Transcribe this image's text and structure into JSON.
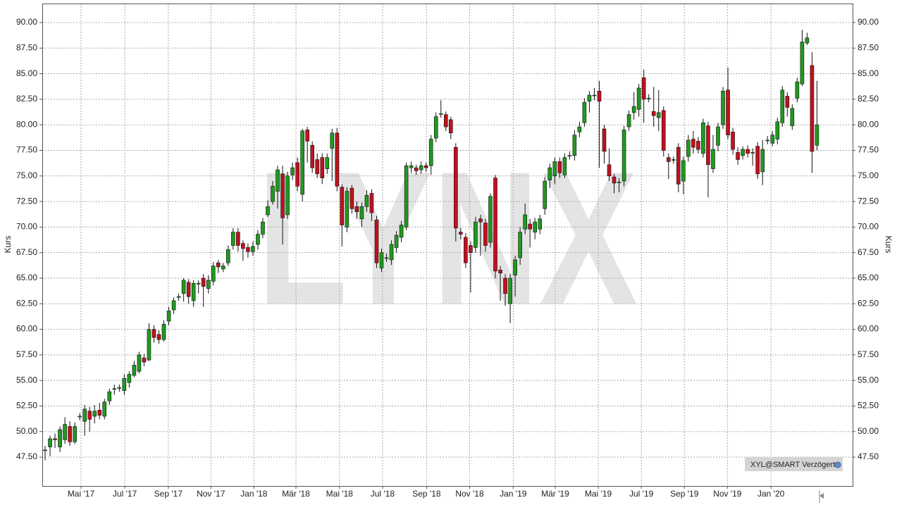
{
  "chart_data": {
    "type": "candlestick",
    "y_label": "Kurs",
    "watermark": "LYNX",
    "source_label": "XYL@SMART Verzögert",
    "up_color": "#1f9a1f",
    "down_color": "#c0111f",
    "grid": true,
    "xlim": [
      -0.57,
      163.2
    ],
    "ylim": [
      44.68,
      91.86
    ],
    "xticks": [
      {
        "value": 7.26,
        "label": "Mai '17"
      },
      {
        "value": 16.1,
        "label": "Jul '17"
      },
      {
        "value": 24.9,
        "label": "Sep '17"
      },
      {
        "value": 33.5,
        "label": "Nov '17"
      },
      {
        "value": 42.2,
        "label": "Jan '18"
      },
      {
        "value": 50.7,
        "label": "Mär '18"
      },
      {
        "value": 59.5,
        "label": "Mai '18"
      },
      {
        "value": 68.2,
        "label": "Jul '18"
      },
      {
        "value": 77.1,
        "label": "Sep '18"
      },
      {
        "value": 85.8,
        "label": "Nov '18"
      },
      {
        "value": 94.6,
        "label": "Jan '19"
      },
      {
        "value": 103.1,
        "label": "Mär '19"
      },
      {
        "value": 111.8,
        "label": "Mai '19"
      },
      {
        "value": 120.5,
        "label": "Jul '19"
      },
      {
        "value": 129.2,
        "label": "Sep '19"
      },
      {
        "value": 137.9,
        "label": "Nov '19"
      },
      {
        "value": 146.7,
        "label": "Jan '20"
      }
    ],
    "yticks": [
      {
        "value": 47.5,
        "label": "47.50"
      },
      {
        "value": 50,
        "label": "50.00"
      },
      {
        "value": 52.5,
        "label": "52.50"
      },
      {
        "value": 55,
        "label": "55.00"
      },
      {
        "value": 57.5,
        "label": "57.50"
      },
      {
        "value": 60,
        "label": "60.00"
      },
      {
        "value": 62.5,
        "label": "62.50"
      },
      {
        "value": 65,
        "label": "65.00"
      },
      {
        "value": 67.5,
        "label": "67.50"
      },
      {
        "value": 70,
        "label": "70.00"
      },
      {
        "value": 72.5,
        "label": "72.50"
      },
      {
        "value": 75,
        "label": "75.00"
      },
      {
        "value": 77.5,
        "label": "77.50"
      },
      {
        "value": 80,
        "label": "80.00"
      },
      {
        "value": 82.5,
        "label": "82.50"
      },
      {
        "value": 85,
        "label": "85.00"
      },
      {
        "value": 87.5,
        "label": "87.50"
      },
      {
        "value": 90,
        "label": "90.00"
      }
    ],
    "open": [
      48.2,
      48.5,
      49.3,
      48.5,
      49.2,
      50.5,
      49.0,
      51.5,
      51.0,
      52.0,
      51.5,
      52.1,
      51.5,
      53.0,
      54.2,
      54.3,
      54.0,
      54.8,
      55.5,
      55.9,
      57.2,
      57.0,
      60.0,
      59.5,
      59.0,
      60.8,
      61.9,
      63.2,
      63.5,
      64.6,
      62.8,
      64.5,
      65.0,
      64.0,
      64.7,
      66.5,
      65.9,
      66.5,
      68.2,
      69.5,
      68.4,
      68.0,
      67.6,
      68.3,
      69.3,
      71.2,
      72.5,
      73.5,
      75.2,
      71.2,
      75.1,
      76.3,
      73.2,
      79.5,
      78.0,
      76.6,
      76.8,
      75.7,
      77.7,
      79.2,
      73.9,
      70.0,
      73.8,
      72.0,
      70.8,
      72.0,
      73.3,
      70.7,
      66.0,
      67.0,
      66.8,
      68.0,
      69.0,
      70.0,
      75.8,
      75.8,
      75.6,
      76.0,
      76.0,
      78.7,
      81.1,
      81.0,
      80.5,
      77.8,
      69.5,
      69.0,
      68.2,
      68.0,
      70.8,
      70.4,
      68.5,
      74.8,
      65.8,
      65.0,
      62.5,
      65.3,
      67.0,
      69.8,
      70.3,
      69.5,
      69.8,
      71.8,
      74.6,
      75.0,
      76.4,
      75.1,
      77.0,
      77.0,
      79.3,
      80.2,
      82.3,
      82.9,
      83.3,
      79.6,
      76.1,
      74.9,
      74.4,
      74.5,
      79.8,
      81.2,
      81.5,
      84.6,
      82.6,
      81.3,
      80.7,
      81.4,
      76.8,
      76.6,
      77.8,
      74.5,
      76.9,
      78.6,
      78.4,
      77.2,
      79.9,
      75.7,
      78.0,
      80.0,
      83.4,
      79.3,
      77.3,
      77.0,
      77.6,
      77.3,
      77.9,
      75.4,
      78.5,
      78.2,
      78.6,
      80.2,
      82.8,
      79.9,
      82.6,
      84.0,
      88.0,
      85.8,
      78.0
    ],
    "high": [
      48.6,
      49.6,
      49.8,
      50.5,
      51.4,
      51.0,
      50.9,
      51.8,
      52.6,
      52.4,
      52.6,
      52.8,
      53.2,
      54.2,
      54.6,
      54.6,
      55.6,
      55.9,
      56.9,
      57.8,
      57.6,
      60.6,
      60.4,
      59.9,
      60.9,
      62.2,
      63.1,
      63.5,
      65.0,
      64.9,
      64.8,
      64.8,
      65.4,
      65.3,
      66.6,
      66.8,
      66.5,
      68.2,
      69.9,
      69.9,
      68.7,
      68.4,
      68.6,
      69.7,
      70.9,
      72.6,
      74.5,
      76.0,
      76.0,
      75.4,
      76.3,
      76.8,
      79.6,
      79.8,
      78.4,
      77.2,
      77.2,
      77.2,
      79.6,
      79.7,
      74.2,
      73.9,
      74.1,
      72.5,
      72.4,
      73.6,
      73.7,
      71.1,
      67.9,
      67.4,
      68.7,
      69.6,
      70.6,
      76.3,
      76.4,
      76.1,
      76.4,
      76.3,
      79.0,
      81.2,
      82.4,
      81.3,
      80.8,
      78.2,
      69.9,
      69.4,
      68.6,
      71.0,
      71.2,
      70.8,
      73.3,
      75.1,
      66.2,
      65.4,
      65.4,
      67.2,
      70.0,
      72.3,
      70.8,
      70.9,
      71.2,
      74.9,
      76.2,
      76.8,
      76.8,
      77.2,
      77.4,
      79.5,
      80.3,
      82.6,
      83.3,
      83.6,
      84.3,
      80.0,
      77.7,
      75.2,
      74.8,
      79.9,
      81.4,
      83.2,
      84.0,
      85.4,
      83.0,
      83.7,
      83.4,
      81.8,
      77.2,
      76.9,
      78.2,
      76.9,
      79.0,
      79.4,
      78.8,
      80.6,
      80.3,
      79.0,
      80.2,
      83.7,
      85.6,
      79.7,
      77.8,
      77.9,
      78.0,
      77.7,
      78.3,
      78.5,
      78.9,
      79.4,
      80.7,
      83.8,
      83.2,
      82.0,
      84.6,
      89.3,
      89.0,
      87.1,
      84.3
    ],
    "low": [
      47.2,
      47.6,
      48.4,
      48.0,
      48.8,
      48.6,
      48.8,
      51.1,
      49.6,
      50.0,
      50.8,
      51.2,
      51.2,
      52.6,
      53.6,
      53.9,
      53.6,
      54.3,
      55.3,
      55.7,
      56.4,
      56.9,
      58.7,
      58.6,
      58.8,
      60.4,
      61.5,
      62.8,
      62.7,
      62.5,
      62.2,
      63.5,
      62.2,
      63.5,
      64.3,
      65.5,
      65.6,
      66.2,
      67.8,
      67.6,
      66.7,
      67.0,
      67.2,
      67.8,
      68.9,
      71.0,
      72.2,
      71.8,
      68.3,
      70.8,
      74.6,
      73.5,
      72.5,
      76.3,
      75.3,
      74.8,
      74.2,
      75.2,
      74.5,
      73.5,
      68.1,
      69.5,
      71.3,
      70.8,
      70.0,
      71.5,
      70.6,
      66.0,
      65.6,
      66.6,
      66.3,
      67.5,
      68.5,
      69.7,
      75.3,
      75.1,
      75.2,
      75.4,
      75.1,
      78.3,
      80.7,
      79.4,
      78.6,
      68.6,
      68.8,
      66.0,
      63.6,
      67.5,
      67.2,
      67.6,
      68.0,
      65.0,
      62.8,
      62.3,
      60.6,
      63.2,
      66.3,
      69.3,
      68.0,
      68.8,
      69.3,
      71.2,
      73.8,
      74.2,
      74.8,
      74.8,
      76.6,
      76.5,
      78.8,
      79.8,
      81.2,
      82.4,
      75.8,
      76.2,
      74.5,
      73.3,
      73.4,
      74.0,
      79.4,
      80.5,
      80.8,
      80.2,
      82.2,
      79.8,
      79.4,
      76.9,
      74.7,
      76.2,
      73.4,
      73.2,
      76.4,
      77.2,
      77.2,
      76.8,
      72.9,
      75.3,
      77.4,
      79.6,
      78.6,
      77.1,
      76.1,
      76.6,
      76.8,
      76.0,
      74.7,
      74.1,
      78.1,
      77.9,
      78.1,
      79.8,
      80.8,
      79.5,
      82.2,
      83.8,
      87.8,
      75.3,
      77.5
    ],
    "close": [
      48.2,
      49.3,
      49.2,
      50.2,
      50.7,
      49.0,
      50.5,
      51.5,
      52.2,
      51.2,
      52.0,
      51.6,
      52.9,
      53.9,
      54.2,
      54.3,
      55.2,
      55.6,
      56.5,
      57.5,
      56.8,
      60.0,
      59.2,
      59.0,
      60.5,
      61.8,
      62.8,
      63.2,
      64.8,
      63.2,
      64.5,
      64.5,
      64.2,
      64.8,
      66.2,
      66.1,
      66.2,
      67.8,
      69.5,
      68.2,
      67.9,
      67.6,
      68.1,
      69.3,
      70.5,
      72.0,
      74.0,
      75.6,
      70.9,
      75.0,
      75.8,
      74.0,
      79.4,
      78.4,
      75.8,
      75.2,
      74.8,
      76.8,
      79.2,
      74.0,
      70.2,
      73.5,
      71.8,
      71.5,
      72.0,
      73.1,
      71.4,
      66.5,
      67.5,
      67.0,
      68.3,
      69.2,
      70.2,
      76.0,
      76.0,
      75.5,
      76.0,
      75.8,
      78.6,
      80.8,
      81.1,
      79.8,
      79.2,
      69.9,
      69.3,
      66.5,
      67.5,
      70.5,
      70.5,
      68.2,
      73.0,
      65.7,
      65.5,
      63.5,
      65.0,
      66.8,
      69.5,
      71.2,
      69.8,
      70.5,
      70.8,
      74.5,
      75.8,
      76.4,
      75.3,
      76.8,
      77.0,
      79.0,
      79.8,
      82.2,
      82.9,
      82.9,
      82.3,
      77.4,
      75.0,
      74.3,
      74.4,
      79.5,
      81.0,
      81.8,
      83.6,
      82.5,
      82.6,
      80.9,
      81.2,
      77.5,
      76.4,
      76.6,
      74.2,
      76.5,
      78.5,
      77.8,
      77.6,
      80.2,
      76.1,
      77.6,
      79.8,
      83.3,
      79.0,
      77.6,
      76.6,
      77.6,
      77.2,
      77.3,
      75.2,
      77.6,
      78.5,
      79.0,
      80.3,
      83.4,
      81.7,
      81.6,
      84.2,
      88.1,
      88.5,
      77.4,
      80.0
    ]
  }
}
